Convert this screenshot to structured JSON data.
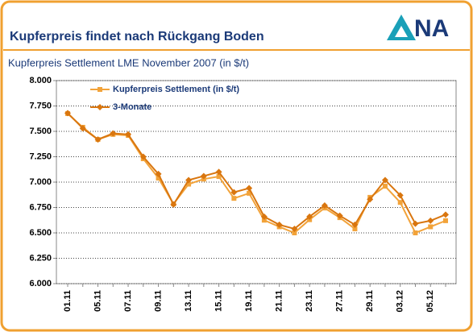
{
  "header": {
    "title": "Kupferpreis findet nach Rückgang Boden",
    "logo": "NA"
  },
  "chart_data": {
    "type": "line",
    "title": "Kupferpreis Settlement LME November 2007 (in $/t)",
    "categories": [
      "01.11",
      null,
      "05.11",
      null,
      "07.11",
      null,
      "09.11",
      null,
      "13.11",
      null,
      "15.11",
      null,
      "19.11",
      null,
      "21.11",
      null,
      "23.11",
      null,
      "27.11",
      null,
      "29.11",
      null,
      "03.12",
      null,
      "05.12",
      null
    ],
    "series": [
      {
        "name": "Kupferpreis Settlement (in $/t)",
        "color": "#f2a33a",
        "marker": "square",
        "values": [
          7675,
          7540,
          7420,
          7470,
          7460,
          7230,
          7040,
          6785,
          6980,
          7030,
          7055,
          6840,
          6890,
          6625,
          6560,
          6500,
          6630,
          6745,
          6650,
          6540,
          6850,
          6960,
          6800,
          6500,
          6560,
          6620
        ]
      },
      {
        "name": "3-Monate",
        "color": "#d9760f",
        "marker": "diamond",
        "values": [
          7680,
          7530,
          7420,
          7480,
          7470,
          7250,
          7080,
          6780,
          7020,
          7060,
          7100,
          6900,
          6940,
          6660,
          6580,
          6540,
          6660,
          6770,
          6670,
          6580,
          6830,
          7020,
          6870,
          6590,
          6620,
          6680
        ]
      }
    ],
    "ylim": [
      6000,
      8000
    ],
    "yticks": [
      {
        "value": 6000,
        "label": "6.000"
      },
      {
        "value": 6250,
        "label": "6.250"
      },
      {
        "value": 6500,
        "label": "6.500"
      },
      {
        "value": 6750,
        "label": "6.750"
      },
      {
        "value": 7000,
        "label": "7.000"
      },
      {
        "value": 7250,
        "label": "7.250"
      },
      {
        "value": 7500,
        "label": "7.500"
      },
      {
        "value": 7750,
        "label": "7.750"
      },
      {
        "value": 8000,
        "label": "8.000"
      }
    ],
    "grid": true,
    "legend": "top-left"
  }
}
